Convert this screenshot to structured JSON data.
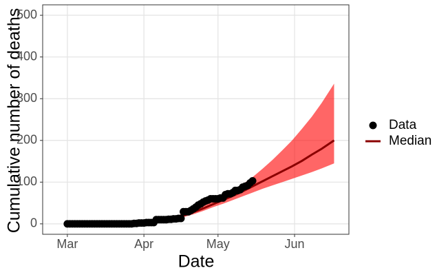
{
  "chart_data": {
    "type": "line",
    "x_label": "Date",
    "y_label": "Cumulative number of deaths",
    "xlim": [
      -10,
      114
    ],
    "xticks": [
      {
        "value": 0,
        "label": "Mar"
      },
      {
        "value": 31,
        "label": "Apr"
      },
      {
        "value": 61,
        "label": "May"
      },
      {
        "value": 92,
        "label": "Jun"
      }
    ],
    "ylim": [
      -25,
      525
    ],
    "yticks": [
      0,
      100,
      200,
      300,
      400,
      500
    ],
    "grid": true,
    "legend": "right",
    "band": {
      "color": "#ff0000",
      "x": [
        31,
        35,
        39,
        43,
        47,
        51,
        55,
        59,
        63,
        67,
        71,
        75,
        79,
        83,
        87,
        91,
        95,
        99,
        103,
        108
      ],
      "lower": [
        0,
        2,
        5,
        10,
        16,
        23,
        31,
        40,
        48,
        57,
        66,
        75,
        84,
        92,
        100,
        108,
        116,
        124,
        133,
        145
      ],
      "upper": [
        0,
        4,
        9,
        17,
        25,
        33,
        43,
        54,
        66,
        80,
        95,
        112,
        132,
        153,
        176,
        200,
        228,
        257,
        290,
        336
      ]
    },
    "series": [
      {
        "name": "Data",
        "type": "scatter",
        "color": "#000000",
        "x": [
          0,
          1,
          2,
          3,
          4,
          5,
          6,
          7,
          8,
          9,
          10,
          11,
          12,
          13,
          14,
          15,
          16,
          17,
          18,
          19,
          20,
          21,
          22,
          23,
          24,
          25,
          26,
          27,
          28,
          29,
          30,
          31,
          32,
          33,
          34,
          35,
          36,
          37,
          38,
          39,
          40,
          41,
          42,
          43,
          44,
          45,
          46,
          47,
          48,
          49,
          50,
          51,
          52,
          53,
          54,
          55,
          56,
          57,
          58,
          59,
          60,
          61,
          62,
          63,
          64,
          65,
          66,
          67,
          68,
          69,
          70,
          71,
          72,
          73,
          74,
          75
        ],
        "values": [
          0,
          0,
          0,
          0,
          0,
          0,
          0,
          0,
          0,
          0,
          0,
          0,
          0,
          0,
          0,
          0,
          0,
          0,
          0,
          0,
          0,
          0,
          0,
          0,
          0,
          0,
          0,
          1,
          1,
          2,
          2,
          2,
          3,
          3,
          3,
          3,
          10,
          10,
          10,
          10,
          10,
          11,
          11,
          12,
          12,
          13,
          13,
          29,
          29,
          29,
          32,
          36,
          40,
          45,
          48,
          52,
          55,
          57,
          60,
          60,
          60,
          60,
          62,
          62,
          70,
          72,
          72,
          75,
          80,
          80,
          82,
          88,
          90,
          92,
          98,
          103
        ]
      },
      {
        "name": "Median",
        "type": "line",
        "color": "#8b0000",
        "x": [
          31,
          35,
          39,
          43,
          47,
          51,
          55,
          59,
          63,
          67,
          71,
          75,
          79,
          83,
          87,
          91,
          95,
          99,
          103,
          108
        ],
        "values": [
          0,
          3,
          7,
          13,
          20,
          28,
          37,
          47,
          57,
          67,
          78,
          90,
          102,
          114,
          126,
          138,
          151,
          166,
          180,
          200
        ]
      }
    ]
  }
}
